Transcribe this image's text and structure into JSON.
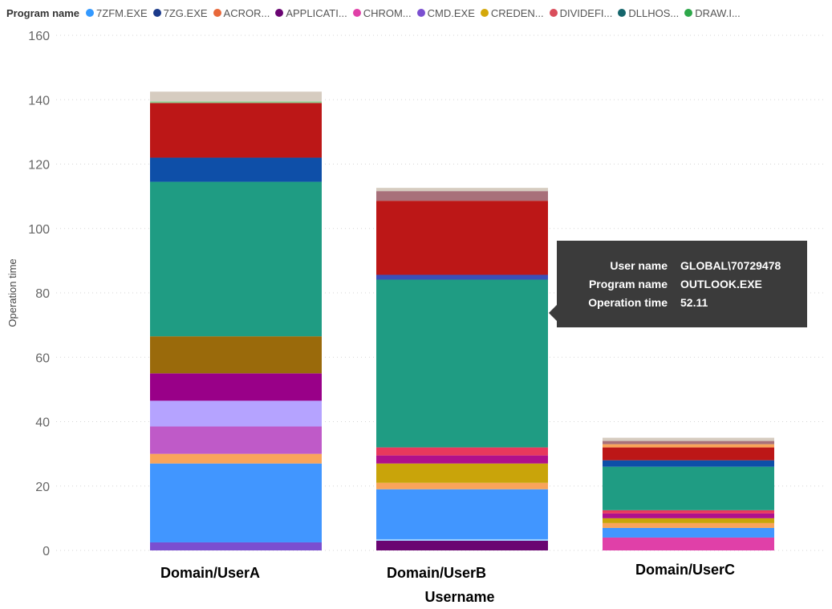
{
  "legend": {
    "title": "Program name",
    "items": [
      {
        "label": "7ZFM.EXE",
        "color": "#3399ff"
      },
      {
        "label": "7ZG.EXE",
        "color": "#1b3a8a"
      },
      {
        "label": "ACROR...",
        "color": "#e8683a"
      },
      {
        "label": "APPLICATI...",
        "color": "#6a0572"
      },
      {
        "label": "CHROM...",
        "color": "#e040a8"
      },
      {
        "label": "CMD.EXE",
        "color": "#7a4fd0"
      },
      {
        "label": "CREDEN...",
        "color": "#d4a80b"
      },
      {
        "label": "DIVIDEFI...",
        "color": "#d94d5b"
      },
      {
        "label": "DLLHOS...",
        "color": "#14656b"
      },
      {
        "label": "DRAW.I...",
        "color": "#2ea84a"
      }
    ]
  },
  "tooltip": {
    "rows": [
      {
        "key": "User name",
        "value": "GLOBAL\\70729478"
      },
      {
        "key": "Program name",
        "value": "OUTLOOK.EXE"
      },
      {
        "key": "Operation time",
        "value": "52.11"
      }
    ]
  },
  "chart_data": {
    "type": "bar",
    "stacked": true,
    "categories": [
      "Domain/UserA",
      "Domain/UserB",
      "Domain/UserC"
    ],
    "xlabel": "Username",
    "ylabel": "Operation time",
    "ylim": [
      0,
      160
    ],
    "yticks": [
      0,
      20,
      40,
      60,
      80,
      100,
      120,
      140,
      160
    ],
    "grid": true,
    "legend_position": "top",
    "stacks": [
      [
        {
          "value": 2.5,
          "color": "#7a4fd0"
        },
        {
          "value": 24.5,
          "color": "#4196ff"
        },
        {
          "value": 3,
          "color": "#f9a45a"
        },
        {
          "value": 8.5,
          "color": "#bf5ac8"
        },
        {
          "value": 8,
          "color": "#b5a3ff"
        },
        {
          "value": 8.5,
          "color": "#990088"
        },
        {
          "value": 11.5,
          "color": "#9a6a0b"
        },
        {
          "value": 48,
          "color": "#1f9c83"
        },
        {
          "value": 7.5,
          "color": "#0e4fa8"
        },
        {
          "value": 17,
          "color": "#bc1717"
        },
        {
          "value": 0.5,
          "color": "#8fcf8f"
        },
        {
          "value": 3,
          "color": "#d6ccc0"
        }
      ],
      [
        {
          "value": 3,
          "color": "#6a0572"
        },
        {
          "value": 0.5,
          "color": "#9ad0ff"
        },
        {
          "value": 15.5,
          "color": "#4196ff"
        },
        {
          "value": 2,
          "color": "#f9a45a"
        },
        {
          "value": 6,
          "color": "#c9a40a"
        },
        {
          "value": 2.5,
          "color": "#b0108c"
        },
        {
          "value": 2.5,
          "color": "#e8385d"
        },
        {
          "value": 52.11,
          "color": "#1f9c83"
        },
        {
          "value": 1.5,
          "color": "#3a4fb8"
        },
        {
          "value": 23,
          "color": "#bc1717"
        },
        {
          "value": 3,
          "color": "#a8707a"
        },
        {
          "value": 1,
          "color": "#d6ccc0"
        }
      ],
      [
        {
          "value": 4,
          "color": "#e040a8"
        },
        {
          "value": 3,
          "color": "#4196ff"
        },
        {
          "value": 1.5,
          "color": "#f9a45a"
        },
        {
          "value": 1.5,
          "color": "#c9a40a"
        },
        {
          "value": 1.5,
          "color": "#b0108c"
        },
        {
          "value": 1,
          "color": "#e8385d"
        },
        {
          "value": 13.5,
          "color": "#1f9c83"
        },
        {
          "value": 2,
          "color": "#0e4fa8"
        },
        {
          "value": 4,
          "color": "#bc1717"
        },
        {
          "value": 1,
          "color": "#f9a45a"
        },
        {
          "value": 1,
          "color": "#a8707a"
        },
        {
          "value": 1,
          "color": "#d6ccc0"
        }
      ]
    ]
  }
}
